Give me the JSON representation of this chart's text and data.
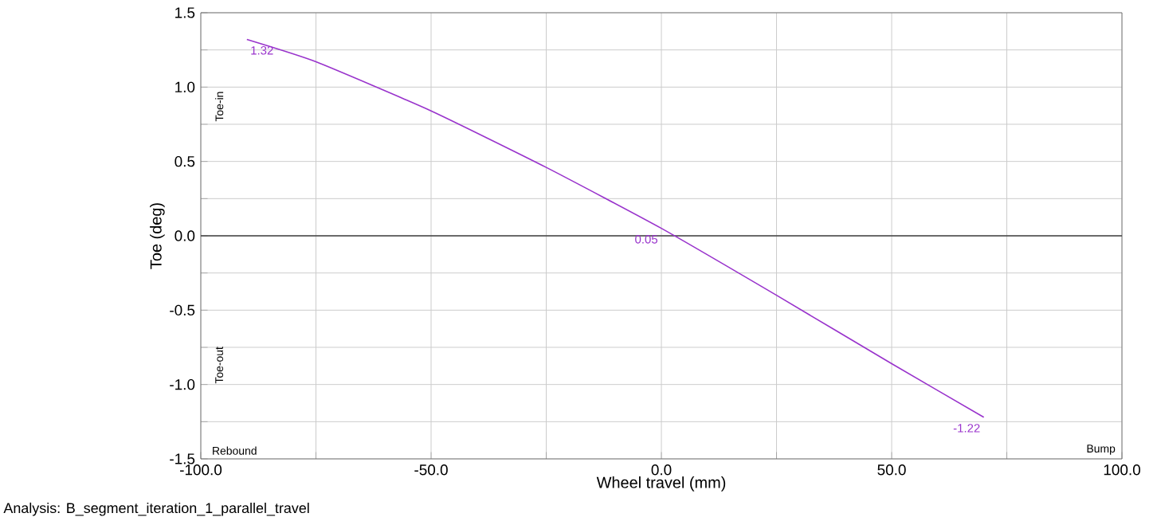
{
  "chart_data": {
    "type": "line",
    "xlabel": "Wheel travel (mm)",
    "ylabel": "Toe (deg)",
    "x": [
      -90,
      -75,
      -50,
      -25,
      0,
      25,
      50,
      70
    ],
    "series": [
      {
        "color": "#9933cc",
        "values": [
          1.32,
          1.17,
          0.84,
          0.46,
          0.05,
          -0.4,
          -0.86,
          -1.22
        ],
        "value_labels": [
          "1.32",
          null,
          null,
          null,
          "0.05",
          null,
          null,
          "-1.22"
        ]
      }
    ],
    "xlim": [
      -100,
      100
    ],
    "xticks": [
      {
        "value": -100,
        "label": "-100.0"
      },
      {
        "value": -75,
        "label": null
      },
      {
        "value": -50,
        "label": "-50.0"
      },
      {
        "value": -25,
        "label": null
      },
      {
        "value": 0,
        "label": "0.0"
      },
      {
        "value": 25,
        "label": null
      },
      {
        "value": 50,
        "label": "50.0"
      },
      {
        "value": 75,
        "label": null
      },
      {
        "value": 100,
        "label": "100.0"
      }
    ],
    "ylim": [
      -1.5,
      1.5
    ],
    "yticks": [
      {
        "value": -1.5,
        "label": "-1.5"
      },
      {
        "value": -1.25,
        "label": null
      },
      {
        "value": -1,
        "label": "-1.0"
      },
      {
        "value": -0.75,
        "label": null
      },
      {
        "value": -0.5,
        "label": "-0.5"
      },
      {
        "value": -0.25,
        "label": null
      },
      {
        "value": 0,
        "label": "0.0"
      },
      {
        "value": 0.25,
        "label": null
      },
      {
        "value": 0.5,
        "label": "0.5"
      },
      {
        "value": 0.75,
        "label": null
      },
      {
        "value": 1,
        "label": "1.0"
      },
      {
        "value": 1.25,
        "label": null
      },
      {
        "value": 1.5,
        "label": "1.5"
      }
    ],
    "grid": true,
    "legend": false,
    "marker": "none",
    "line_style": "solid",
    "ref_lines": [
      {
        "axis": "y",
        "value": 0,
        "color": "#404040"
      }
    ],
    "annotations": [
      "Toe-in",
      "Toe-out",
      "Rebound",
      "Bump",
      "Analysis:  B_segment_iteration_1_parallel_travel"
    ]
  }
}
